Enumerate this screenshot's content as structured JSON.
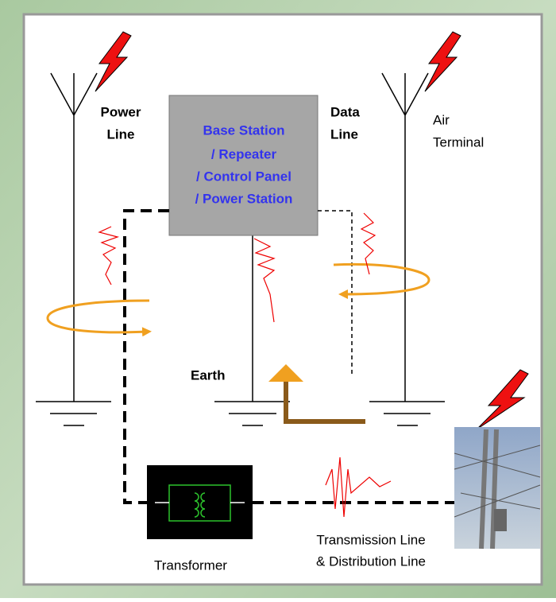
{
  "station": {
    "lines": [
      "Base Station",
      "/ Repeater",
      "/ Control Panel",
      "/ Power Station"
    ]
  },
  "labels": {
    "power_line": [
      "Power",
      "Line"
    ],
    "data_line": [
      "Data",
      "Line"
    ],
    "air_terminal": [
      "Air",
      "Terminal"
    ],
    "earth": "Earth",
    "transformer": "Transformer",
    "transmission": [
      "Transmission Line",
      "& Distribution Line"
    ]
  }
}
